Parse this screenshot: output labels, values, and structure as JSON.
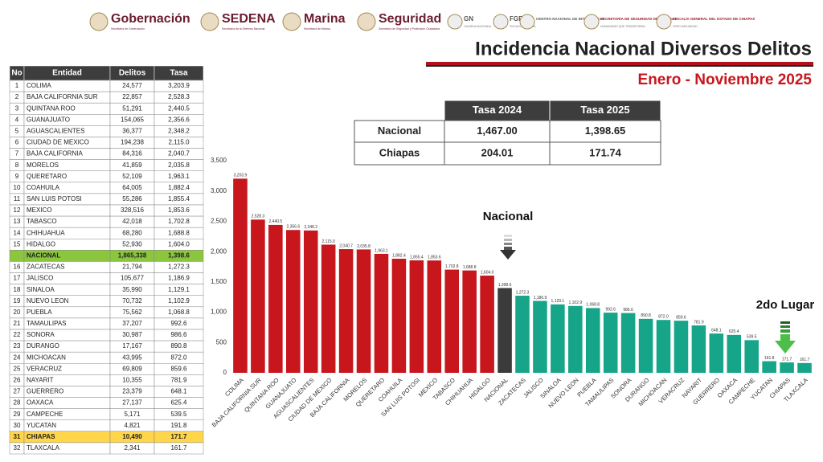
{
  "header": {
    "logos": [
      {
        "name": "Gobernación",
        "sub": "Secretaría de Gobernación"
      },
      {
        "name": "SEDENA",
        "sub": "Secretaría de la Defensa Nacional"
      },
      {
        "name": "Marina",
        "sub": "Secretaría de Marina"
      },
      {
        "name": "Seguridad",
        "sub": "Secretaría de Seguridad y Protección Ciudadana"
      },
      {
        "name": "GN",
        "sub": "GUARDIA NACIONAL"
      },
      {
        "name": "FGR",
        "sub": "FISCALÍA GENERAL"
      },
      {
        "name": "CENTRO NACIONAL DE INTELIGENCIA",
        "sub": null
      },
      {
        "name": "SECRETARÍA DE SEGURIDAD DEL PUEBLO",
        "sub": "HUMANISMO QUE TRANSFORMA"
      },
      {
        "name": "FISCALÍA GENERAL DEL ESTADO DE CHIAPAS",
        "sub": "CERO IMPUNIDAD"
      }
    ],
    "title": "Incidencia Nacional Diversos Delitos",
    "subtitle": "Enero - Noviembre 2025"
  },
  "table": {
    "columns": [
      "No",
      "Entidad",
      "Delitos",
      "Tasa"
    ],
    "rows": [
      [
        "1",
        "COLIMA",
        "24,577",
        "3,203.9"
      ],
      [
        "2",
        "BAJA CALIFORNIA SUR",
        "22,857",
        "2,528.3"
      ],
      [
        "3",
        "QUINTANA ROO",
        "51,291",
        "2,440.5"
      ],
      [
        "4",
        "GUANAJUATO",
        "154,065",
        "2,356.6"
      ],
      [
        "5",
        "AGUASCALIENTES",
        "36,377",
        "2,348.2"
      ],
      [
        "6",
        "CIUDAD DE MEXICO",
        "194,238",
        "2,115.0"
      ],
      [
        "7",
        "BAJA CALIFORNIA",
        "84,316",
        "2,040.7"
      ],
      [
        "8",
        "MORELOS",
        "41,859",
        "2,035.8"
      ],
      [
        "9",
        "QUERETARO",
        "52,109",
        "1,963.1"
      ],
      [
        "10",
        "COAHUILA",
        "64,005",
        "1,882.4"
      ],
      [
        "11",
        "SAN LUIS POTOSI",
        "55,286",
        "1,855.4"
      ],
      [
        "12",
        "MEXICO",
        "328,516",
        "1,853.6"
      ],
      [
        "13",
        "TABASCO",
        "42,018",
        "1,702.8"
      ],
      [
        "14",
        "CHIHUAHUA",
        "68,280",
        "1,688.8"
      ],
      [
        "15",
        "HIDALGO",
        "52,930",
        "1,604.0"
      ],
      [
        null,
        "NACIONAL",
        "1,865,338",
        "1,398.6"
      ],
      [
        "16",
        "ZACATECAS",
        "21,794",
        "1,272.3"
      ],
      [
        "17",
        "JALISCO",
        "105,677",
        "1,186.9"
      ],
      [
        "18",
        "SINALOA",
        "35,990",
        "1,129.1"
      ],
      [
        "19",
        "NUEVO LEON",
        "70,732",
        "1,102.9"
      ],
      [
        "20",
        "PUEBLA",
        "75,562",
        "1,068.8"
      ],
      [
        "21",
        "TAMAULIPAS",
        "37,207",
        "992.6"
      ],
      [
        "22",
        "SONORA",
        "30,987",
        "986.6"
      ],
      [
        "23",
        "DURANGO",
        "17,167",
        "890.8"
      ],
      [
        "24",
        "MICHOACAN",
        "43,995",
        "872.0"
      ],
      [
        "25",
        "VERACRUZ",
        "69,809",
        "859.6"
      ],
      [
        "26",
        "NAYARIT",
        "10,355",
        "781.9"
      ],
      [
        "27",
        "GUERRERO",
        "23,379",
        "648.1"
      ],
      [
        "28",
        "OAXACA",
        "27,137",
        "625.4"
      ],
      [
        "29",
        "CAMPECHE",
        "5,171",
        "539.5"
      ],
      [
        "30",
        "YUCATAN",
        "4,821",
        "191.8"
      ],
      [
        "31",
        "CHIAPAS",
        "10,490",
        "171.7"
      ],
      [
        "32",
        "TLAXCALA",
        "2,341",
        "161.7"
      ]
    ]
  },
  "summary_table": {
    "columns": [
      "Tasa 2024",
      "Tasa 2025"
    ],
    "rows": [
      [
        "Nacional",
        "1,467.00",
        "1,398.65"
      ],
      [
        "Chiapas",
        "204.01",
        "171.74"
      ]
    ]
  },
  "chart_data": {
    "type": "bar",
    "categories": [
      "COLIMA",
      "BAJA CALIFORNIA SUR",
      "QUINTANA ROO",
      "GUANAJUATO",
      "AGUASCALIENTES",
      "CIUDAD DE MEXICO",
      "BAJA CALIFORNIA",
      "MORELOS",
      "QUERETARO",
      "COAHUILA",
      "SAN LUIS POTOSI",
      "MEXICO",
      "TABASCO",
      "CHIHUAHUA",
      "HIDALGO",
      "NACIONAL",
      "ZACATECAS",
      "JALISCO",
      "SINALOA",
      "NUEVO LEON",
      "PUEBLA",
      "TAMAULIPAS",
      "SONORA",
      "DURANGO",
      "MICHOACAN",
      "VERACRUZ",
      "NAYARIT",
      "GUERRERO",
      "OAXACA",
      "CAMPECHE",
      "YUCATAN",
      "CHIAPAS",
      "TLAXCALA"
    ],
    "values": [
      3203.9,
      2528.3,
      2440.5,
      2356.6,
      2348.2,
      2115.0,
      2040.7,
      2035.8,
      1963.1,
      1882.4,
      1855.4,
      1853.6,
      1702.8,
      1688.8,
      1604.0,
      1398.6,
      1272.3,
      1186.9,
      1129.1,
      1102.9,
      1068.8,
      992.6,
      986.6,
      890.8,
      872.0,
      859.6,
      781.9,
      648.1,
      625.4,
      539.5,
      191.8,
      171.7,
      161.7
    ],
    "value_labels": [
      "3,203.9",
      "2,528.3",
      "2,440.5",
      "2,356.6",
      "2,348.2",
      "2,115.0",
      "2,040.7",
      "2,035.8",
      "1,963.1",
      "1,882.4",
      "1,855.4",
      "1,853.6",
      "1,702.8",
      "1,688.8",
      "1,604.0",
      "1,398.6",
      "1,272.3",
      "1,186.9",
      "1,129.1",
      "1,102.9",
      "1,068.8",
      "992.6",
      "986.6",
      "890.8",
      "872.0",
      "859.6",
      "781.9",
      "648.1",
      "625.4",
      "539.5",
      "191.8",
      "171.7",
      "161.7"
    ],
    "colors": [
      "#c8161d",
      "#c8161d",
      "#c8161d",
      "#c8161d",
      "#c8161d",
      "#c8161d",
      "#c8161d",
      "#c8161d",
      "#c8161d",
      "#c8161d",
      "#c8161d",
      "#c8161d",
      "#c8161d",
      "#c8161d",
      "#c8161d",
      "#3b3b3b",
      "#17a58a",
      "#17a58a",
      "#17a58a",
      "#17a58a",
      "#17a58a",
      "#17a58a",
      "#17a58a",
      "#17a58a",
      "#17a58a",
      "#17a58a",
      "#17a58a",
      "#17a58a",
      "#17a58a",
      "#17a58a",
      "#17a58a",
      "#17a58a",
      "#17a58a"
    ],
    "ylim": [
      0,
      3500
    ],
    "yticks": [
      0,
      500,
      {
        "value": 1000,
        "label": "1,000"
      },
      {
        "value": 1500,
        "label": "1,500"
      },
      {
        "value": 2000,
        "label": "2,000"
      },
      {
        "value": 2500,
        "label": "2,500"
      },
      {
        "value": 3000,
        "label": "3,000"
      },
      {
        "value": 3500,
        "label": "3,500"
      }
    ],
    "grid": false,
    "annotations": [
      "Nacional",
      "2do Lugar"
    ]
  }
}
